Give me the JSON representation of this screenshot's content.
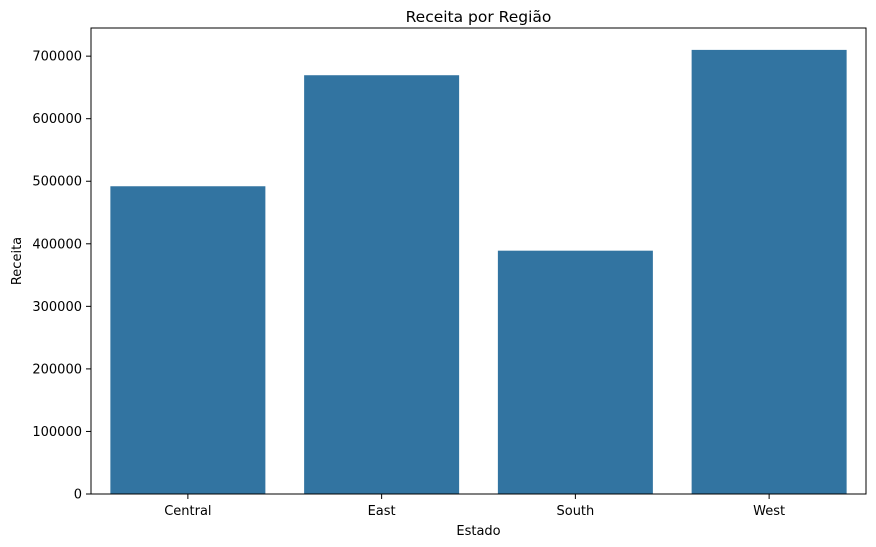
{
  "chart_data": {
    "type": "bar",
    "title": "Receita por Região",
    "xlabel": "Estado",
    "ylabel": "Receita",
    "categories": [
      "Central",
      "East",
      "South",
      "West"
    ],
    "values": [
      492000,
      669500,
      389000,
      710000
    ],
    "ylim": [
      0,
      745000
    ],
    "yticks": [
      0,
      100000,
      200000,
      300000,
      400000,
      500000,
      600000,
      700000
    ],
    "ytick_labels": [
      "0",
      "100000",
      "200000",
      "300000",
      "400000",
      "500000",
      "600000",
      "700000"
    ],
    "grid": false,
    "legend": "none",
    "bar_color": "#3274a1"
  }
}
